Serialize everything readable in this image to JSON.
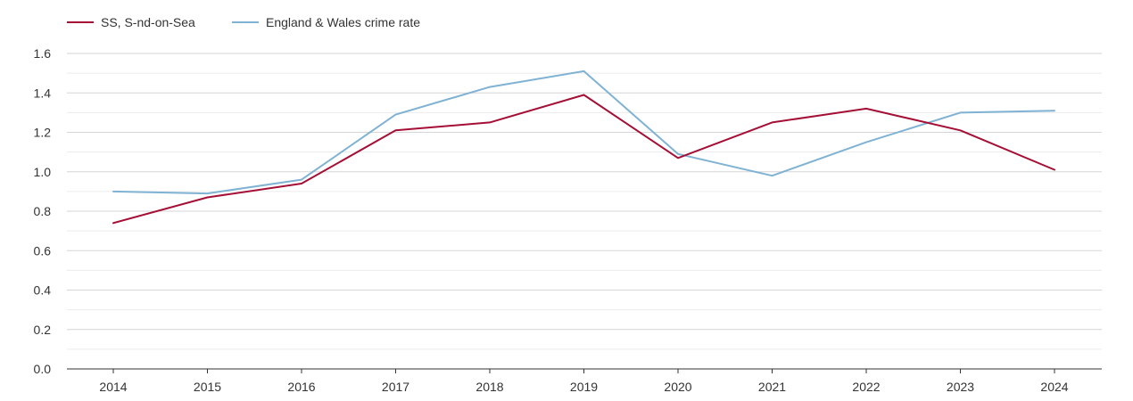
{
  "chart_data": {
    "type": "line",
    "title": "",
    "xlabel": "",
    "ylabel": "",
    "categories": [
      "2014",
      "2015",
      "2016",
      "2017",
      "2018",
      "2019",
      "2020",
      "2021",
      "2022",
      "2023",
      "2024"
    ],
    "ylim": [
      0,
      1.6
    ],
    "yticks": [
      "0.0",
      "0.2",
      "0.4",
      "0.6",
      "0.8",
      "1.0",
      "1.2",
      "1.4",
      "1.6"
    ],
    "grid": true,
    "legend_position": "top-left",
    "series": [
      {
        "name": "SS, S-nd-on-Sea",
        "color": "#a50f35",
        "values": [
          0.74,
          0.87,
          0.94,
          1.21,
          1.25,
          1.39,
          1.07,
          1.25,
          1.32,
          1.21,
          1.01
        ]
      },
      {
        "name": "England & Wales crime rate",
        "color": "#7fb2d3",
        "values": [
          0.9,
          0.89,
          0.96,
          1.29,
          1.43,
          1.51,
          1.09,
          0.98,
          1.15,
          1.3,
          1.31
        ]
      }
    ]
  }
}
